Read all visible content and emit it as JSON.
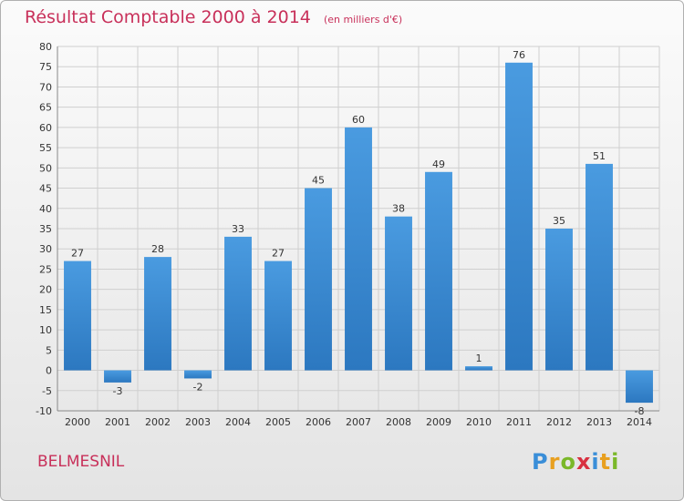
{
  "header": {
    "title": "Résultat Comptable 2000 à 2014",
    "subtitle": "(en milliers d'€)"
  },
  "footer": {
    "commune": "BELMESNIL",
    "brand": "Proxiti",
    "brand_letters": [
      "P",
      "r",
      "o",
      "x",
      "i",
      "t",
      "i"
    ],
    "brand_colors": [
      "#3a8ed8",
      "#e8a020",
      "#7ab829",
      "#d83040",
      "#3a8ed8",
      "#e8a020",
      "#7ab829"
    ]
  },
  "colors": {
    "bar": "#4a9be0",
    "bar_dark": "#2c78c0",
    "title": "#c8305a",
    "grid": "#cfcfcf"
  },
  "chart_data": {
    "type": "bar",
    "title": "Résultat Comptable 2000 à 2014",
    "subtitle": "(en milliers d'€)",
    "categories": [
      "2000",
      "2001",
      "2002",
      "2003",
      "2004",
      "2005",
      "2006",
      "2007",
      "2008",
      "2009",
      "2010",
      "2011",
      "2012",
      "2013",
      "2014"
    ],
    "values": [
      27,
      -3,
      28,
      -2,
      33,
      27,
      45,
      60,
      38,
      49,
      1,
      76,
      35,
      51,
      -8
    ],
    "yticks": [
      -10,
      -5,
      0,
      5,
      10,
      15,
      20,
      25,
      30,
      35,
      40,
      45,
      50,
      55,
      60,
      65,
      70,
      75,
      80
    ],
    "ylim": [
      -10,
      80
    ],
    "xlabel": "",
    "ylabel": "",
    "grid": true
  }
}
